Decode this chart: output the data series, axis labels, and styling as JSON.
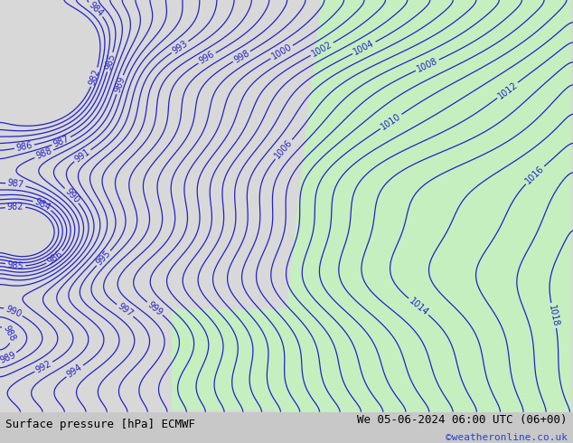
{
  "title_left": "Surface pressure [hPa] ECMWF",
  "title_right": "We 05-06-2024 06:00 UTC (06+00)",
  "copyright": "©weatheronline.co.uk",
  "bg_color": "#d8d8d8",
  "land_color": "#c8f0c0",
  "contour_color": "#2222cc",
  "contour_linewidth": 0.9,
  "label_fontsize": 7,
  "footer_fontsize": 9,
  "pressure_min": 982,
  "pressure_max": 1018,
  "pressure_step": 1
}
